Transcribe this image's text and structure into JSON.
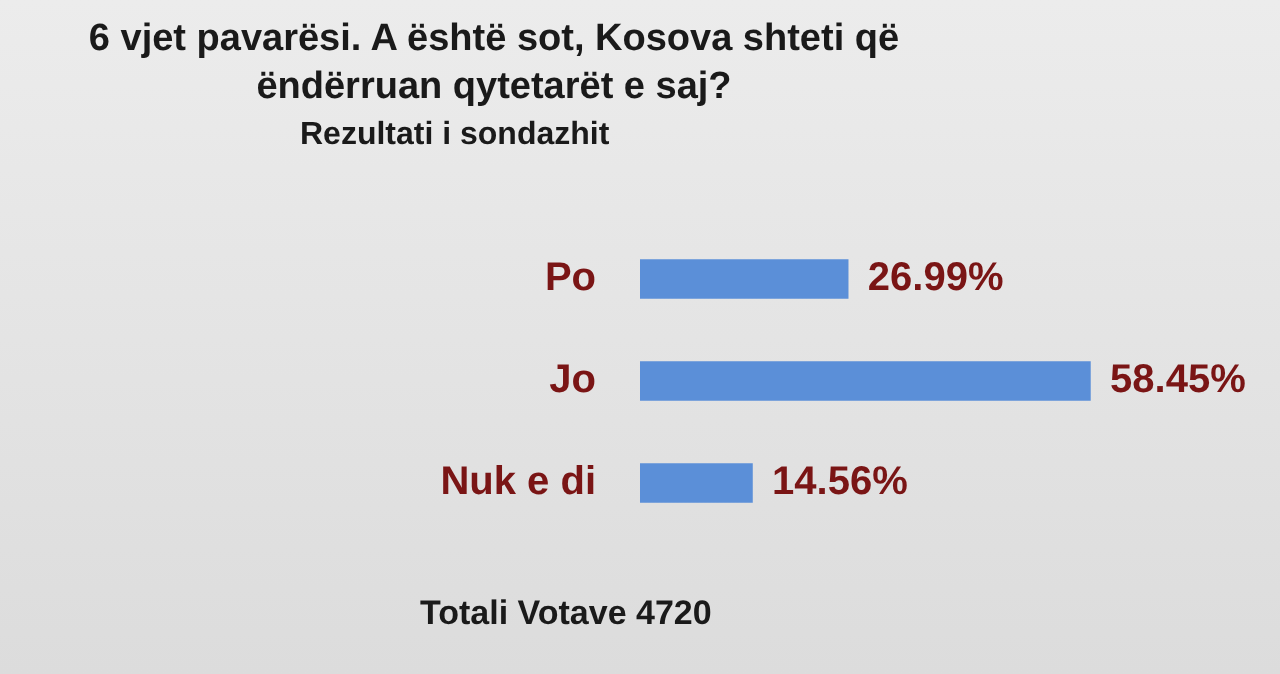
{
  "chart_data": {
    "type": "bar",
    "orientation": "horizontal",
    "title": "6 vjet pavarësi. A është sot, Kosova shteti që ëndërruan qytetarët e saj?",
    "subtitle": "Rezultati i sondazhit",
    "categories": [
      "Po",
      "Jo",
      "Nuk e di"
    ],
    "values": [
      26.99,
      58.45,
      14.56
    ],
    "value_labels": [
      "26.99%",
      "58.45%",
      "14.56%"
    ],
    "color": "#5b8fd8",
    "annotations": [
      "Totali Votave 4720"
    ],
    "grid": false,
    "legend": false
  }
}
